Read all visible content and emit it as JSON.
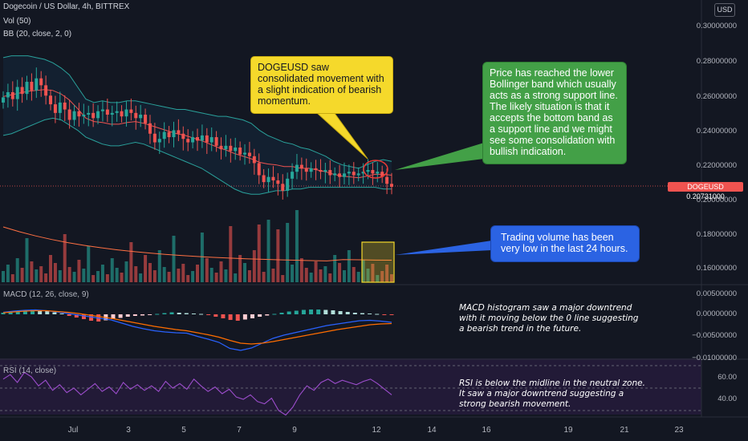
{
  "header": {
    "symbol_title": "Dogecoin / US Dollar, 4h, BITTREX",
    "indicators": [
      "Vol (50)",
      "BB (20, close, 2, 0)"
    ],
    "currency_button": "USD"
  },
  "price_axis": {
    "labels": [
      "0.30000000",
      "0.28000000",
      "0.26000000",
      "0.24000000",
      "0.22000000",
      "0.20000000",
      "0.18000000",
      "0.16000000"
    ],
    "last_price_label": "DOGEUSD  0.20731000"
  },
  "macd": {
    "title": "MACD (12, 26, close, 9)",
    "axis_labels": [
      "0.00500000",
      "0.00000000",
      "−0.00500000",
      "−0.01000000"
    ]
  },
  "rsi": {
    "title": "RSI (14, close)",
    "axis_labels": [
      "60.00",
      "40.00"
    ]
  },
  "time_axis": {
    "labels": [
      "Jul",
      "3",
      "5",
      "7",
      "9",
      "12",
      "14",
      "16",
      "19",
      "21",
      "23"
    ]
  },
  "annotations": {
    "consolidation": "DOGEUSD saw consolidated movement with a slight indication of bearish momentum.",
    "bollinger": "Price has reached the lower Bollinger band which usually acts as a strong support line. The likely situation is that it accepts the bottom band as a support line and we might see some consolidation with bullish indication.",
    "volume": "Trading volume has been very low in the last 24 hours.",
    "macd_note": "MACD histogram saw a major downtrend with it moving below the 0 line suggesting a bearish trend in the future.",
    "rsi_note": "RSI is below the midline in the neutral zone. It saw a major downtrend suggesting a strong bearish movement."
  },
  "colors": {
    "background": "#131722",
    "up": "#26a69a",
    "down": "#ef5350",
    "bb_basis": "#ef5350",
    "bb_band": "#2aa19b",
    "macd_line": "#2962ff",
    "signal_line": "#ff6d00",
    "rsi_line": "#9c4dcc",
    "callout_yellow": "#f5d92b",
    "callout_green": "#43a047",
    "callout_blue": "#2b63e3"
  },
  "chart_data": {
    "type": "candlestick",
    "title": "Dogecoin / US Dollar, 4h, BITTREX",
    "ylim": [
      0.15,
      0.305
    ],
    "x_labels": [
      "Jul",
      "3",
      "5",
      "7",
      "9",
      "12",
      "14",
      "16",
      "19",
      "21",
      "23"
    ],
    "close_series": [
      0.259,
      0.262,
      0.258,
      0.265,
      0.261,
      0.268,
      0.263,
      0.27,
      0.266,
      0.26,
      0.255,
      0.25,
      0.256,
      0.252,
      0.246,
      0.251,
      0.248,
      0.249,
      0.25,
      0.247,
      0.251,
      0.252,
      0.249,
      0.25,
      0.251,
      0.248,
      0.252,
      0.25,
      0.247,
      0.249,
      0.244,
      0.238,
      0.233,
      0.235,
      0.239,
      0.236,
      0.24,
      0.238,
      0.235,
      0.233,
      0.236,
      0.234,
      0.237,
      0.233,
      0.236,
      0.231,
      0.229,
      0.231,
      0.228,
      0.23,
      0.226,
      0.227,
      0.225,
      0.221,
      0.214,
      0.21,
      0.213,
      0.211,
      0.209,
      0.205,
      0.212,
      0.216,
      0.22,
      0.218,
      0.216,
      0.218,
      0.217,
      0.216,
      0.217,
      0.214,
      0.215,
      0.213,
      0.215,
      0.216,
      0.214,
      0.215,
      0.216,
      0.217,
      0.215,
      0.216,
      0.213,
      0.209,
      0.2073
    ],
    "bollinger_upper_series": [
      0.282,
      0.283,
      0.283,
      0.283,
      0.282,
      0.281,
      0.279,
      0.276,
      0.272,
      0.265,
      0.258,
      0.256,
      0.257,
      0.256,
      0.256,
      0.257,
      0.257,
      0.256,
      0.255,
      0.254,
      0.253,
      0.252,
      0.252,
      0.251,
      0.25,
      0.249,
      0.248,
      0.248,
      0.247,
      0.246,
      0.244,
      0.24,
      0.237,
      0.235,
      0.233,
      0.232,
      0.23,
      0.229,
      0.227,
      0.225,
      0.222,
      0.22,
      0.219,
      0.218,
      0.22,
      0.222,
      0.223,
      0.222
    ],
    "bollinger_lower_series": [
      0.237,
      0.238,
      0.24,
      0.242,
      0.244,
      0.246,
      0.247,
      0.246,
      0.243,
      0.24,
      0.236,
      0.234,
      0.232,
      0.231,
      0.231,
      0.232,
      0.233,
      0.232,
      0.23,
      0.228,
      0.226,
      0.224,
      0.222,
      0.22,
      0.218,
      0.215,
      0.212,
      0.209,
      0.206,
      0.204,
      0.203,
      0.203,
      0.204,
      0.205,
      0.205,
      0.206,
      0.206,
      0.207,
      0.207,
      0.207,
      0.207,
      0.207,
      0.207,
      0.207,
      0.207,
      0.207,
      0.206,
      0.206
    ],
    "macd_range": [
      -0.0105,
      0.006
    ],
    "rsi_range": [
      22,
      70
    ],
    "rsi_levels": [
      70,
      50,
      30
    ]
  }
}
